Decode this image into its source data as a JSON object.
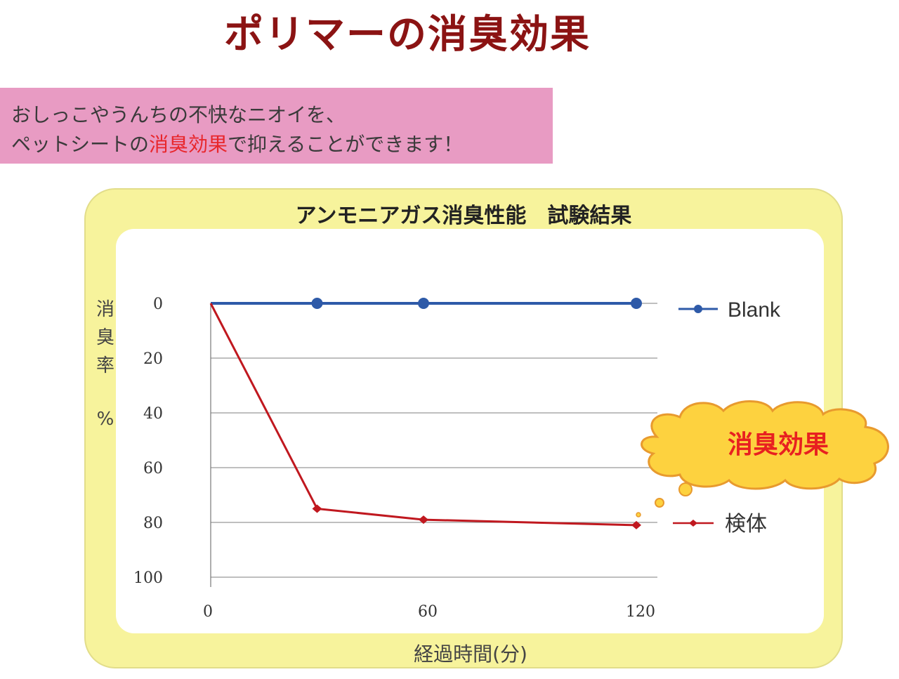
{
  "page": {
    "title": "ポリマーの消臭効果",
    "banner_line1": "おしっこやうんちの不快なニオイを、",
    "banner_line2_pre": "ペットシートの",
    "banner_line2_highlight": "消臭効果",
    "banner_line2_post": "で抑えることができます！",
    "callout": "消臭効果"
  },
  "chart_data": {
    "type": "line",
    "title": "アンモニアガス消臭性能　試験結果",
    "xlabel": "経過時間(分)",
    "ylabel_chars": [
      "消",
      "臭",
      "率",
      "%"
    ],
    "x_ticks": [
      0,
      60,
      120
    ],
    "y_ticks": [
      0,
      20,
      40,
      60,
      80,
      100
    ],
    "xlim": [
      0,
      125
    ],
    "ylim": [
      0,
      100
    ],
    "y_inverted": true,
    "grid": true,
    "legend_position": "right",
    "series": [
      {
        "name": "Blank",
        "color": "#2e5aa8",
        "x": [
          0,
          30,
          60,
          120
        ],
        "y": [
          0,
          0,
          0,
          0
        ]
      },
      {
        "name": "検体",
        "color": "#c0181f",
        "x": [
          0,
          30,
          60,
          120
        ],
        "y": [
          0,
          75,
          79,
          81
        ]
      }
    ]
  }
}
